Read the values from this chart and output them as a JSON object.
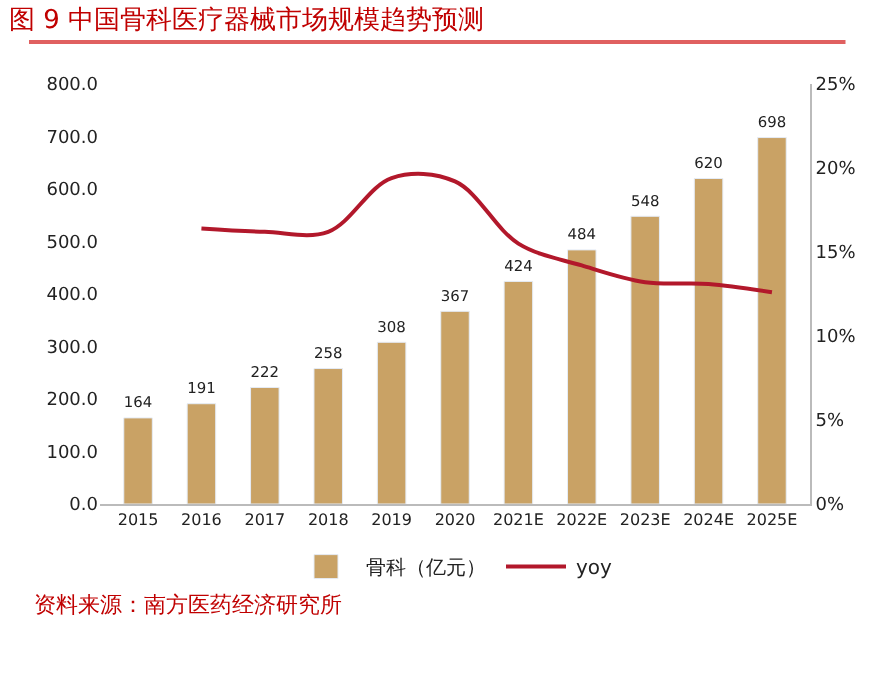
{
  "chart_data": {
    "type": "bar",
    "title": "图 9 中国骨科医疗器械市场规模趋势预测",
    "categories": [
      "2015",
      "2016",
      "2017",
      "2018",
      "2019",
      "2020",
      "2021E",
      "2022E",
      "2023E",
      "2024E",
      "2025E"
    ],
    "series": [
      {
        "name": "骨科（亿元）",
        "color": "#c9a265",
        "values": [
          164,
          191,
          222,
          258,
          308,
          367,
          424,
          484,
          548,
          620,
          698
        ],
        "data_labels": true
      },
      {
        "name": "yoy",
        "type": "line",
        "axis": "y2",
        "color": "#b2182b",
        "values": [
          null,
          16.4,
          16.2,
          16.2,
          19.4,
          19.2,
          15.5,
          14.2,
          13.2,
          13.1,
          12.6
        ]
      }
    ],
    "ylim": [
      0,
      800
    ],
    "yticks": [
      {
        "value": 0,
        "label": "0.0"
      },
      {
        "value": 100,
        "label": "100.0"
      },
      {
        "value": 200,
        "label": "200.0"
      },
      {
        "value": 300,
        "label": "300.0"
      },
      {
        "value": 400,
        "label": "400.0"
      },
      {
        "value": 500,
        "label": "500.0"
      },
      {
        "value": 600,
        "label": "600.0"
      },
      {
        "value": 700,
        "label": "700.0"
      },
      {
        "value": 800,
        "label": "800.0"
      }
    ],
    "y2lim": [
      0,
      25
    ],
    "y2ticks": [
      {
        "value": 0,
        "label": "0%"
      },
      {
        "value": 5,
        "label": "5%"
      },
      {
        "value": 10,
        "label": "10%"
      },
      {
        "value": 15,
        "label": "15%"
      },
      {
        "value": 20,
        "label": "20%"
      },
      {
        "value": 25,
        "label": "25%"
      }
    ],
    "legend": "bottom",
    "marker": "none",
    "line_style": "solid",
    "annotations": [
      "资料来源：南方医药经济研究所"
    ]
  }
}
